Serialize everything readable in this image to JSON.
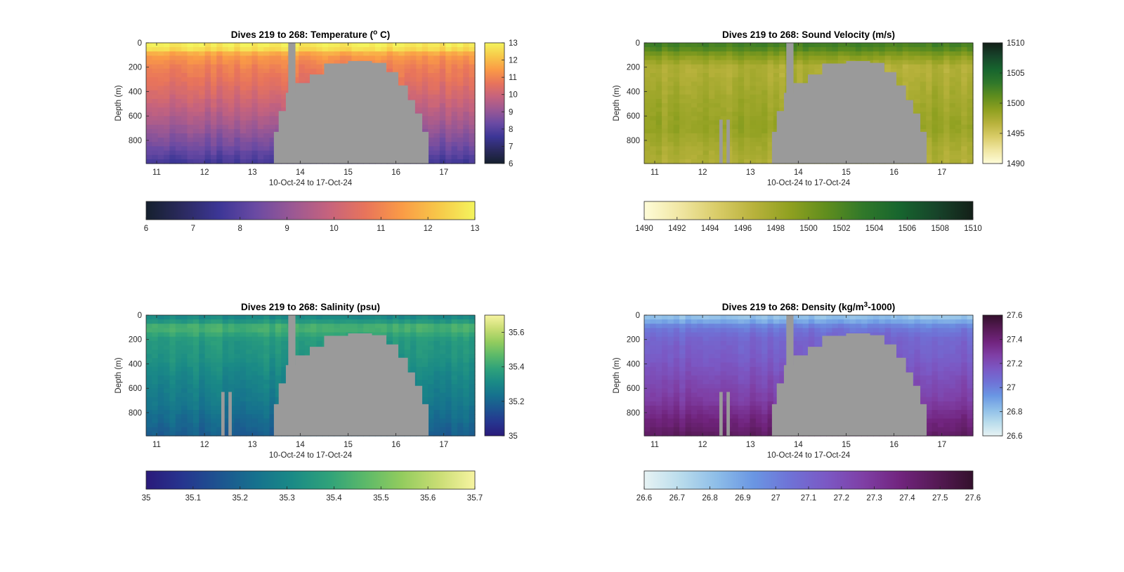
{
  "chart_data": [
    {
      "type": "heatmap",
      "variable": "temperature",
      "title_parts": [
        "Dives 219 to 268: Temperature (",
        "o",
        " C)"
      ],
      "xlabel": "10-Oct-24 to 17-Oct-24",
      "ylabel": "Depth (m)",
      "x_range": [
        10.78,
        17.65
      ],
      "y_range": [
        0,
        990
      ],
      "x_ticks": [
        "11",
        "12",
        "13",
        "14",
        "15",
        "16",
        "17"
      ],
      "y_ticks": [
        "0",
        "200",
        "400",
        "600",
        "800"
      ],
      "clim": [
        6,
        13
      ],
      "colormap": [
        "#15202e",
        "#2b2a5f",
        "#3c3696",
        "#6a4aa3",
        "#9a5894",
        "#c6637d",
        "#e8745b",
        "#fa9b46",
        "#f7c849",
        "#f4f45d"
      ],
      "side_colorbar_ticks": [
        "6",
        "7",
        "8",
        "9",
        "10",
        "11",
        "12",
        "13"
      ],
      "bottom_colorbar_ticks": [
        "6",
        "7",
        "8",
        "9",
        "10",
        "11",
        "12",
        "13"
      ],
      "profile": {
        "depth": [
          0,
          50,
          100,
          200,
          300,
          500,
          700,
          850,
          990
        ],
        "value": [
          12.9,
          12.6,
          11.4,
          10.9,
          10.6,
          9.9,
          9.1,
          8.4,
          7.6
        ]
      },
      "bottom_profile": {
        "x": [
          13.3,
          13.45,
          13.55,
          13.7,
          13.9,
          14.2,
          14.5,
          15.0,
          15.5,
          15.8,
          16.05,
          16.25,
          16.4,
          16.55
        ],
        "depth": [
          990,
          730,
          560,
          410,
          330,
          260,
          170,
          150,
          165,
          240,
          350,
          470,
          580,
          730
        ]
      },
      "gaps": [
        {
          "x": [
            13.75,
            13.9
          ],
          "depth": [
            0,
            990
          ]
        }
      ]
    },
    {
      "type": "heatmap",
      "variable": "sound_velocity",
      "title_parts": [
        "Dives 219 to 268: Sound Velocity (m/s)"
      ],
      "xlabel": "10-Oct-24 to 17-Oct-24",
      "ylabel": "Depth (m)",
      "x_range": [
        10.78,
        17.65
      ],
      "y_range": [
        0,
        990
      ],
      "x_ticks": [
        "11",
        "12",
        "13",
        "14",
        "15",
        "16",
        "17"
      ],
      "y_ticks": [
        "0",
        "200",
        "400",
        "600",
        "800"
      ],
      "clim": [
        1490,
        1510
      ],
      "colormap": [
        "#fefcd8",
        "#f0e6a2",
        "#d9cc68",
        "#b8b23c",
        "#8fa020",
        "#5f8d1e",
        "#30782a",
        "#17652e",
        "#17442a",
        "#131f18"
      ],
      "side_colorbar_ticks": [
        "1490",
        "1495",
        "1500",
        "1505",
        "1510"
      ],
      "bottom_colorbar_ticks": [
        "1490",
        "1492",
        "1494",
        "1496",
        "1498",
        "1500",
        "1502",
        "1504",
        "1506",
        "1508",
        "1510"
      ],
      "profile": {
        "depth": [
          0,
          40,
          100,
          200,
          350,
          500,
          700,
          850,
          990
        ],
        "value": [
          1502.5,
          1502.0,
          1499.5,
          1497.0,
          1497.5,
          1498.0,
          1498.5,
          1497.5,
          1497.0
        ]
      },
      "bottom_profile": {
        "x": [
          13.3,
          13.45,
          13.55,
          13.7,
          13.9,
          14.2,
          14.5,
          15.0,
          15.5,
          15.8,
          16.05,
          16.25,
          16.4,
          16.55
        ],
        "depth": [
          990,
          730,
          560,
          410,
          330,
          260,
          170,
          150,
          165,
          240,
          350,
          470,
          580,
          730
        ]
      },
      "gaps": [
        {
          "x": [
            13.75,
            13.9
          ],
          "depth": [
            0,
            990
          ]
        },
        {
          "x": [
            12.35,
            12.42
          ],
          "depth": [
            630,
            990
          ]
        },
        {
          "x": [
            12.5,
            12.57
          ],
          "depth": [
            630,
            990
          ]
        }
      ]
    },
    {
      "type": "heatmap",
      "variable": "salinity",
      "title_parts": [
        "Dives 219 to 268: Salinity (psu)"
      ],
      "xlabel": "10-Oct-24 to 17-Oct-24",
      "ylabel": "Depth (m)",
      "x_range": [
        10.78,
        17.65
      ],
      "y_range": [
        0,
        990
      ],
      "x_ticks": [
        "11",
        "12",
        "13",
        "14",
        "15",
        "16",
        "17"
      ],
      "y_ticks": [
        "0",
        "200",
        "400",
        "600",
        "800"
      ],
      "clim": [
        35.0,
        35.7
      ],
      "colormap": [
        "#2a1a7a",
        "#26358f",
        "#1d5490",
        "#16718e",
        "#1a8a86",
        "#2fa27a",
        "#5cb969",
        "#93cc5e",
        "#c9dd74",
        "#f7f4a1"
      ],
      "side_colorbar_ticks": [
        "35",
        "35.2",
        "35.4",
        "35.6"
      ],
      "bottom_colorbar_ticks": [
        "35",
        "35.1",
        "35.2",
        "35.3",
        "35.4",
        "35.5",
        "35.6",
        "35.7"
      ],
      "profile": {
        "depth": [
          0,
          40,
          100,
          200,
          350,
          500,
          700,
          850,
          990
        ],
        "value": [
          35.3,
          35.33,
          35.45,
          35.36,
          35.34,
          35.3,
          35.26,
          35.22,
          35.18
        ]
      },
      "bottom_profile": {
        "x": [
          13.3,
          13.45,
          13.55,
          13.7,
          13.9,
          14.2,
          14.5,
          15.0,
          15.5,
          15.8,
          16.05,
          16.25,
          16.4,
          16.55
        ],
        "depth": [
          990,
          730,
          560,
          410,
          330,
          260,
          170,
          150,
          165,
          240,
          350,
          470,
          580,
          730
        ]
      },
      "gaps": [
        {
          "x": [
            13.75,
            13.9
          ],
          "depth": [
            0,
            990
          ]
        },
        {
          "x": [
            12.35,
            12.42
          ],
          "depth": [
            630,
            990
          ]
        },
        {
          "x": [
            12.5,
            12.57
          ],
          "depth": [
            630,
            990
          ]
        }
      ]
    },
    {
      "type": "heatmap",
      "variable": "density",
      "title_parts": [
        "Dives 219 to 268: Density (kg/m",
        "3",
        "-1000)"
      ],
      "xlabel": "10-Oct-24 to 17-Oct-24",
      "ylabel": "Depth (m)",
      "x_range": [
        10.78,
        17.65
      ],
      "y_range": [
        0,
        990
      ],
      "x_ticks": [
        "11",
        "12",
        "13",
        "14",
        "15",
        "16",
        "17"
      ],
      "y_ticks": [
        "0",
        "200",
        "400",
        "600",
        "800"
      ],
      "clim": [
        26.6,
        27.6
      ],
      "colormap": [
        "#e7f3f4",
        "#b9dcec",
        "#8dbde8",
        "#6a96e3",
        "#6f72d6",
        "#7b58c4",
        "#7f3fa5",
        "#71247e",
        "#561a55",
        "#33102c"
      ],
      "side_colorbar_ticks": [
        "26.6",
        "26.8",
        "27",
        "27.2",
        "27.4",
        "27.6"
      ],
      "bottom_colorbar_ticks": [
        "26.6",
        "26.7",
        "26.8",
        "26.9",
        "27",
        "27.1",
        "27.2",
        "27.3",
        "27.4",
        "27.5",
        "27.6"
      ],
      "profile": {
        "depth": [
          0,
          40,
          100,
          200,
          350,
          500,
          700,
          850,
          990
        ],
        "value": [
          26.78,
          26.85,
          27.02,
          27.1,
          27.14,
          27.2,
          27.28,
          27.38,
          27.46
        ]
      },
      "bottom_profile": {
        "x": [
          13.3,
          13.45,
          13.55,
          13.7,
          13.9,
          14.2,
          14.5,
          15.0,
          15.5,
          15.8,
          16.05,
          16.25,
          16.4,
          16.55
        ],
        "depth": [
          990,
          730,
          560,
          410,
          330,
          260,
          170,
          150,
          165,
          240,
          350,
          470,
          580,
          730
        ]
      },
      "gaps": [
        {
          "x": [
            13.75,
            13.9
          ],
          "depth": [
            0,
            990
          ]
        },
        {
          "x": [
            12.35,
            12.42
          ],
          "depth": [
            630,
            990
          ]
        },
        {
          "x": [
            12.5,
            12.57
          ],
          "depth": [
            630,
            990
          ]
        }
      ]
    }
  ]
}
